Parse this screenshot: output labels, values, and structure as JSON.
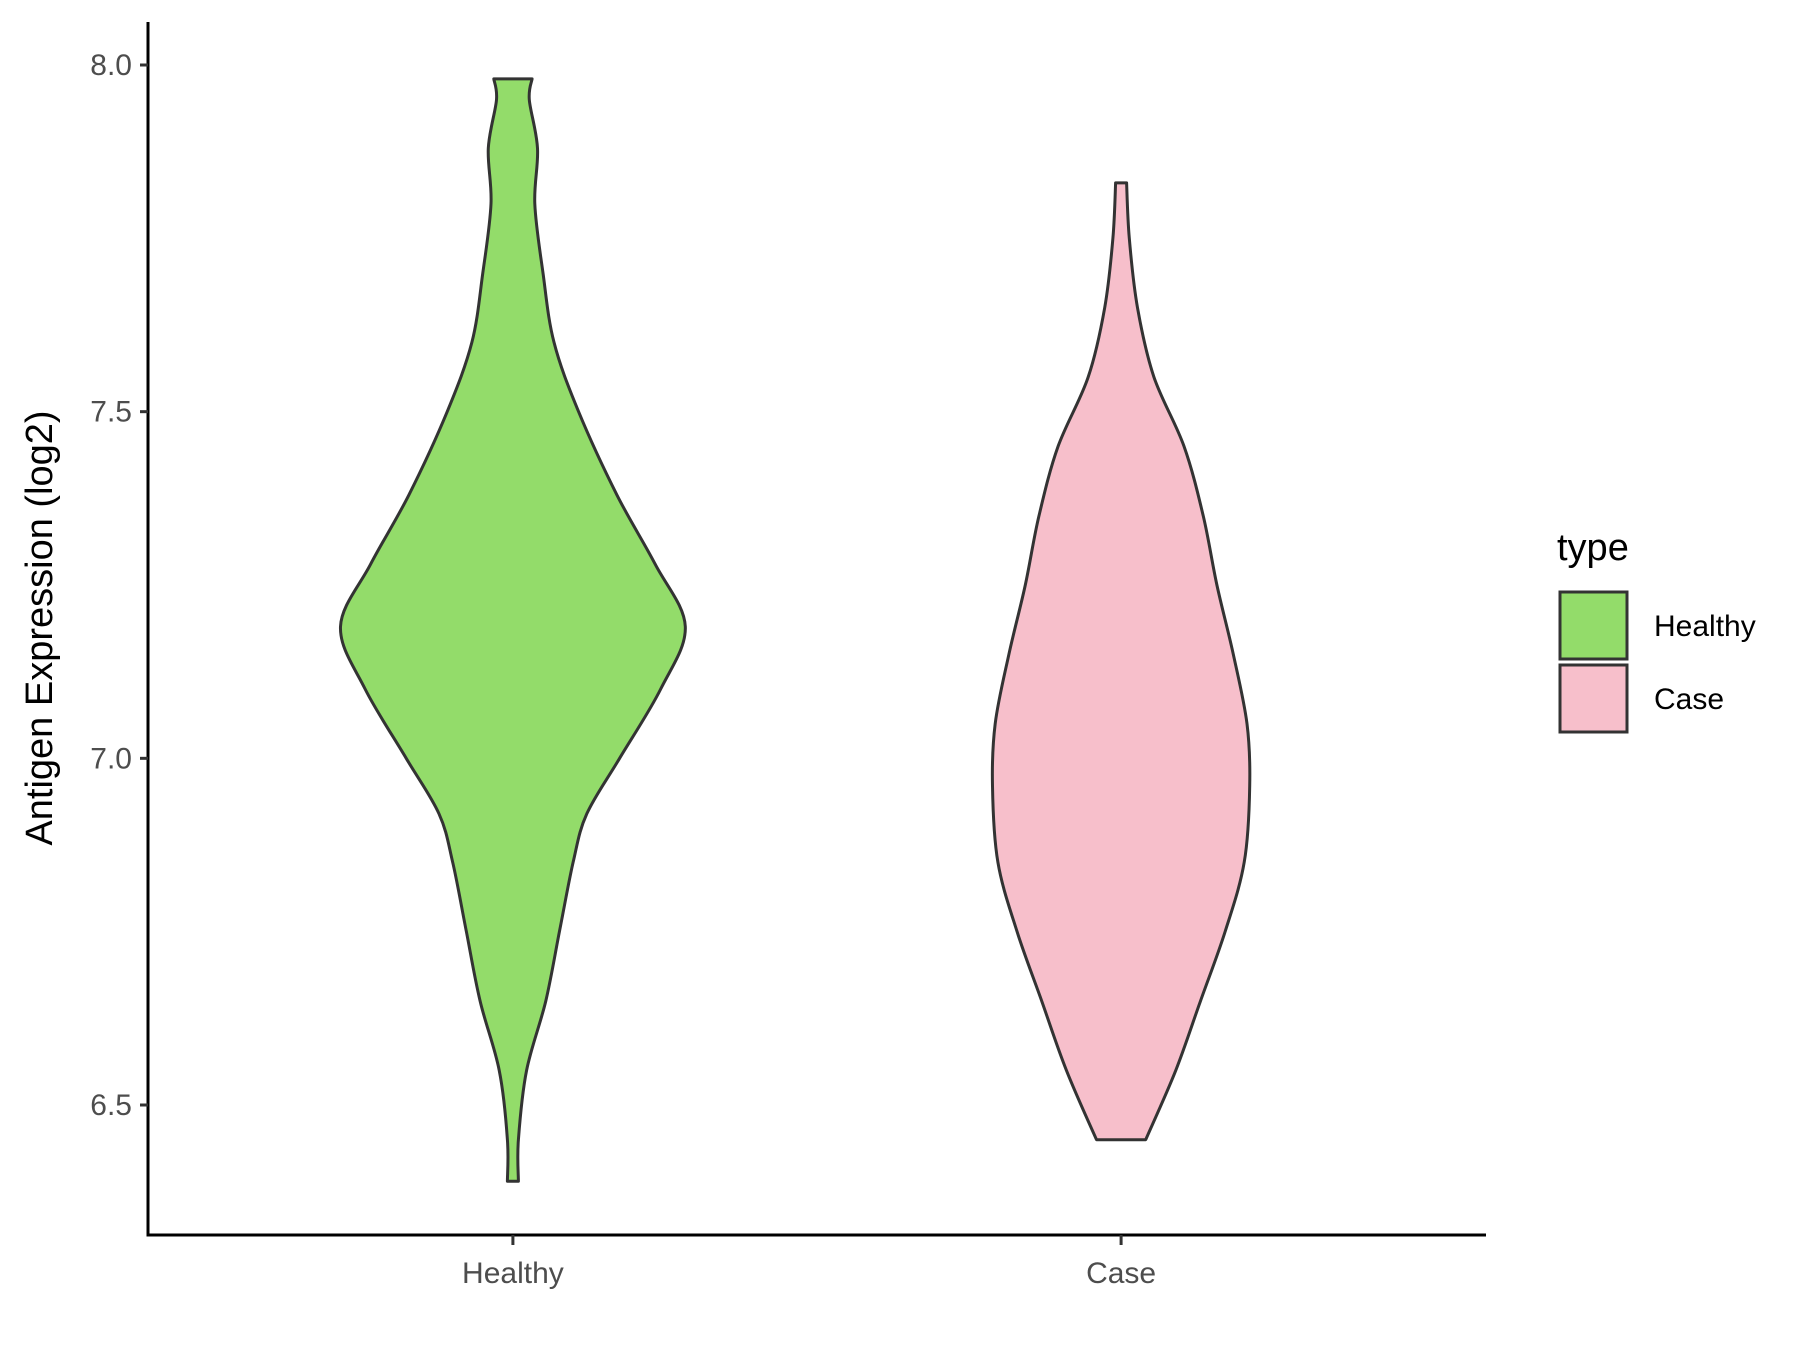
{
  "chart_data": {
    "type": "violin",
    "xlabel": "",
    "ylabel": "Antigen Expression (log2)",
    "ylim": [
      6.32,
      8.06
    ],
    "yticks": [
      6.5,
      7.0,
      7.5,
      8.0
    ],
    "ytick_labels": [
      "6.5",
      "7.0",
      "7.5",
      "8.0"
    ],
    "categories": [
      "Healthy",
      "Case"
    ],
    "legend": {
      "title": "type",
      "position": "right",
      "entries": [
        {
          "label": "Healthy",
          "color": "#93dc6a"
        },
        {
          "label": "Case",
          "color": "#f7bfcb"
        }
      ]
    },
    "grid": false,
    "series": [
      {
        "name": "Healthy",
        "color": "#93dc6a",
        "min": 6.39,
        "max": 7.98,
        "density_profile": [
          [
            6.39,
            0.02
          ],
          [
            6.45,
            0.02
          ],
          [
            6.55,
            0.05
          ],
          [
            6.65,
            0.12
          ],
          [
            6.75,
            0.17
          ],
          [
            6.85,
            0.22
          ],
          [
            6.92,
            0.27
          ],
          [
            7.0,
            0.39
          ],
          [
            7.1,
            0.54
          ],
          [
            7.19,
            0.63
          ],
          [
            7.28,
            0.52
          ],
          [
            7.38,
            0.38
          ],
          [
            7.5,
            0.24
          ],
          [
            7.6,
            0.15
          ],
          [
            7.7,
            0.11
          ],
          [
            7.8,
            0.08
          ],
          [
            7.88,
            0.09
          ],
          [
            7.95,
            0.06
          ],
          [
            7.98,
            0.07
          ]
        ]
      },
      {
        "name": "Case",
        "color": "#f7bfcb",
        "min": 6.45,
        "max": 7.83,
        "density_profile": [
          [
            6.45,
            0.09
          ],
          [
            6.55,
            0.2
          ],
          [
            6.65,
            0.29
          ],
          [
            6.75,
            0.38
          ],
          [
            6.85,
            0.45
          ],
          [
            6.96,
            0.47
          ],
          [
            7.05,
            0.46
          ],
          [
            7.15,
            0.41
          ],
          [
            7.25,
            0.35
          ],
          [
            7.35,
            0.3
          ],
          [
            7.45,
            0.23
          ],
          [
            7.55,
            0.12
          ],
          [
            7.65,
            0.06
          ],
          [
            7.75,
            0.03
          ],
          [
            7.83,
            0.02
          ]
        ]
      }
    ]
  }
}
